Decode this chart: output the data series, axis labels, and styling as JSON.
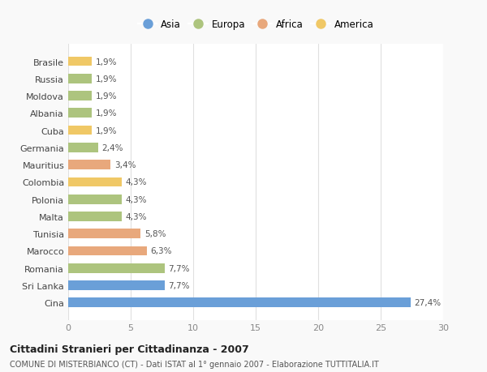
{
  "categories": [
    "Brasile",
    "Russia",
    "Moldova",
    "Albania",
    "Cuba",
    "Germania",
    "Mauritius",
    "Colombia",
    "Polonia",
    "Malta",
    "Tunisia",
    "Marocco",
    "Romania",
    "Sri Lanka",
    "Cina"
  ],
  "values": [
    1.9,
    1.9,
    1.9,
    1.9,
    1.9,
    2.4,
    3.4,
    4.3,
    4.3,
    4.3,
    5.8,
    6.3,
    7.7,
    7.7,
    27.4
  ],
  "labels": [
    "1,9%",
    "1,9%",
    "1,9%",
    "1,9%",
    "1,9%",
    "2,4%",
    "3,4%",
    "4,3%",
    "4,3%",
    "4,3%",
    "5,8%",
    "6,3%",
    "7,7%",
    "7,7%",
    "27,4%"
  ],
  "colors": [
    "#f0c866",
    "#adc47e",
    "#adc47e",
    "#adc47e",
    "#f0c866",
    "#adc47e",
    "#e8a87c",
    "#f0c866",
    "#adc47e",
    "#adc47e",
    "#e8a87c",
    "#e8a87c",
    "#adc47e",
    "#6a9fd8",
    "#6a9fd8"
  ],
  "legend_labels": [
    "Asia",
    "Europa",
    "Africa",
    "America"
  ],
  "legend_colors": [
    "#6a9fd8",
    "#adc47e",
    "#e8a87c",
    "#f0c866"
  ],
  "xlim": [
    0,
    30
  ],
  "xticks": [
    0,
    5,
    10,
    15,
    20,
    25,
    30
  ],
  "title": "Cittadini Stranieri per Cittadinanza - 2007",
  "subtitle": "COMUNE DI MISTERBIANCO (CT) - Dati ISTAT al 1° gennaio 2007 - Elaborazione TUTTITALIA.IT",
  "bg_color": "#f9f9f9",
  "plot_bg_color": "#ffffff",
  "grid_color": "#e0e0e0"
}
